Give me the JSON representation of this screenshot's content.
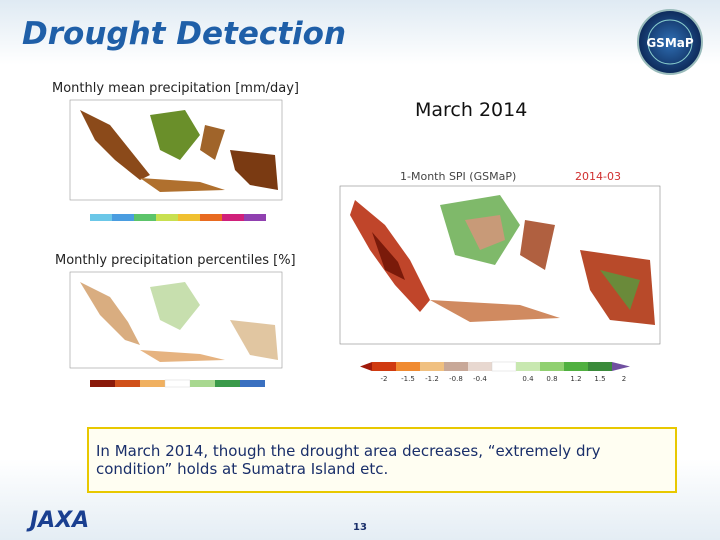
{
  "header": {
    "title": "Drought Detection",
    "logo": "GSMaP"
  },
  "panels": [
    {
      "caption": "Monthly mean precipitation [mm/day]"
    },
    {
      "caption": "Monthly precipitation percentiles [%]"
    }
  ],
  "main_map": {
    "date_heading": "March 2014",
    "title": "1-Month SPI (GSMaP)",
    "date": "2014-03",
    "colorbar_labels": [
      "-2",
      "-1.5",
      "-1.2",
      "-0.8",
      "-0.4",
      "0.4",
      "0.8",
      "1.2",
      "1.5",
      "2"
    ]
  },
  "note": {
    "lines": [
      "In March 2014, though the drought area decreases, “extremely dry",
      "condition” holds at Sumatra Island etc."
    ]
  },
  "footer": {
    "page": "13",
    "brand": "JAXA"
  }
}
